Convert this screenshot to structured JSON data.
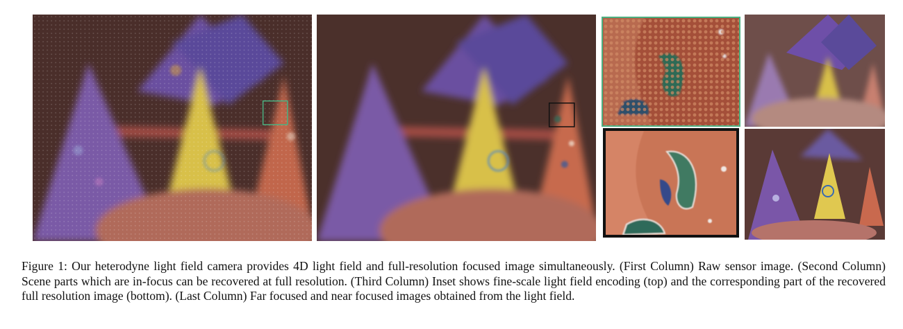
{
  "figure": {
    "caption": "Figure 1: Our heterodyne light field camera provides 4D light field and full-resolution focused image simultaneously. (First Column) Raw sensor image. (Second Column) Scene parts which are in-focus can be recovered at full resolution. (Third Column) Inset shows fine-scale light field encoding (top) and the corresponding part of the recovered full resolution image (bottom). (Last Column) Far focused and near focused images obtained from the light field."
  },
  "colors": {
    "inset_box_raw": "#4bb081",
    "inset_box_recovered": "#111111",
    "background": "#4a2e2a"
  }
}
